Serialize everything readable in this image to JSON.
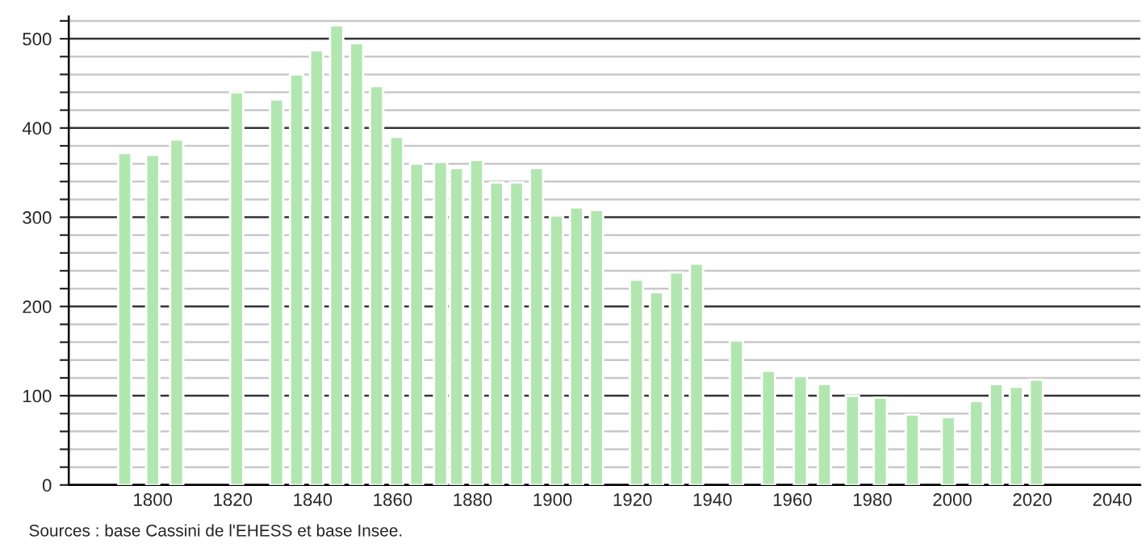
{
  "chart_data": {
    "type": "bar",
    "x": [
      1793,
      1800,
      1806,
      1821,
      1831,
      1836,
      1841,
      1846,
      1851,
      1856,
      1861,
      1866,
      1872,
      1876,
      1881,
      1886,
      1891,
      1896,
      1901,
      1906,
      1911,
      1921,
      1926,
      1931,
      1936,
      1946,
      1954,
      1962,
      1968,
      1975,
      1982,
      1990,
      1999,
      2006,
      2011,
      2016,
      2021
    ],
    "values": [
      372,
      370,
      387,
      440,
      432,
      460,
      487,
      515,
      495,
      447,
      390,
      360,
      362,
      355,
      364,
      339,
      339,
      355,
      302,
      311,
      308,
      230,
      216,
      238,
      248,
      162,
      128,
      122,
      113,
      100,
      98,
      79,
      76,
      94,
      113,
      110,
      118
    ],
    "color": "#b2e6b0",
    "xlim": [
      1779,
      2047
    ],
    "xticks": [
      1800,
      1820,
      1840,
      1860,
      1880,
      1900,
      1920,
      1940,
      1960,
      1980,
      2000,
      2020,
      2040
    ],
    "ylim": [
      0,
      525
    ],
    "yticks": [
      0,
      {
        "value": 20,
        "label": null
      },
      {
        "value": 40,
        "label": null
      },
      {
        "value": 60,
        "label": null
      },
      {
        "value": 80,
        "label": null
      },
      100,
      {
        "value": 120,
        "label": null
      },
      {
        "value": 140,
        "label": null
      },
      {
        "value": 160,
        "label": null
      },
      {
        "value": 180,
        "label": null
      },
      200,
      {
        "value": 220,
        "label": null
      },
      {
        "value": 240,
        "label": null
      },
      {
        "value": 260,
        "label": null
      },
      {
        "value": 280,
        "label": null
      },
      300,
      {
        "value": 320,
        "label": null
      },
      {
        "value": 340,
        "label": null
      },
      {
        "value": 360,
        "label": null
      },
      {
        "value": 380,
        "label": null
      },
      400,
      {
        "value": 420,
        "label": null
      },
      {
        "value": 440,
        "label": null
      },
      {
        "value": 460,
        "label": null
      },
      {
        "value": 480,
        "label": null
      },
      500,
      {
        "value": 520,
        "label": null
      }
    ],
    "grid": "y",
    "legend": false,
    "annotations": [
      "Sources : base Cassini de l'EHESS et base Insee."
    ]
  }
}
